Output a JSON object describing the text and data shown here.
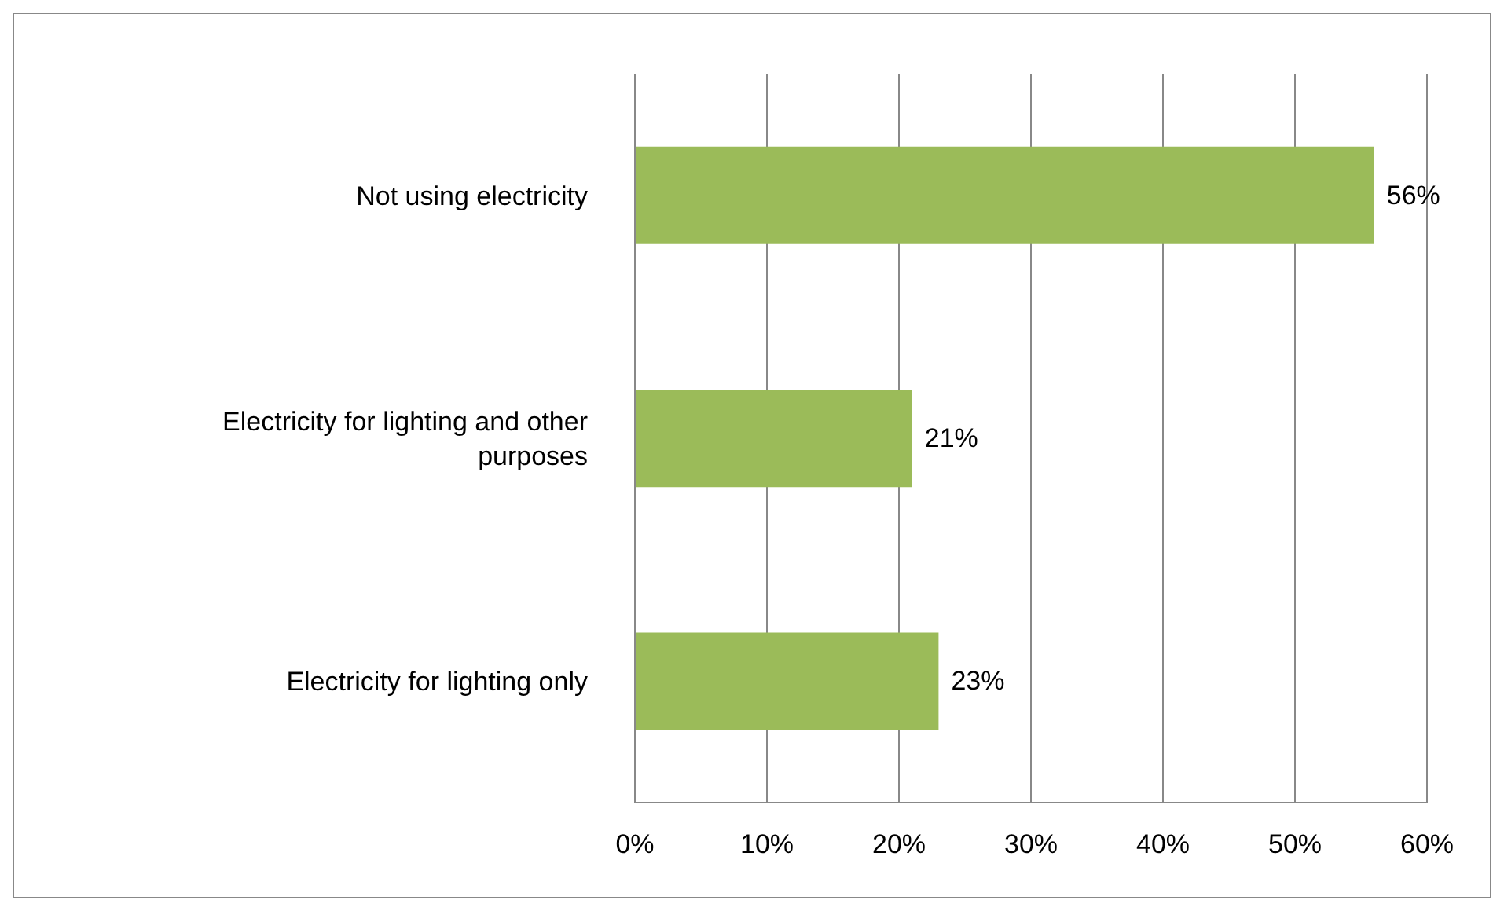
{
  "chart_data": {
    "type": "bar",
    "orientation": "horizontal",
    "categories": [
      "Not using electricity",
      "Electricity for lighting and other purposes",
      "Electricity for lighting only"
    ],
    "values": [
      56,
      21,
      23
    ],
    "color": "#9bbb59",
    "value_labels": [
      "56%",
      "21%",
      "23%"
    ],
    "xlim": [
      0,
      60
    ],
    "xticks": [
      {
        "value": 0,
        "label": "0%"
      },
      {
        "value": 10,
        "label": "10%"
      },
      {
        "value": 20,
        "label": "20%"
      },
      {
        "value": 30,
        "label": "30%"
      },
      {
        "value": 40,
        "label": "40%"
      },
      {
        "value": 50,
        "label": "50%"
      },
      {
        "value": 60,
        "label": "60%"
      }
    ],
    "grid": "x"
  }
}
